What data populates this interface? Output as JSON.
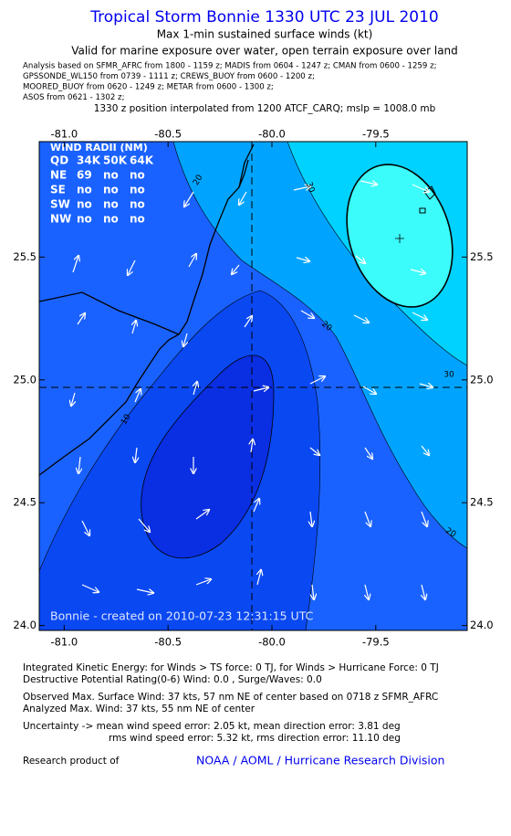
{
  "header": {
    "title": "Tropical Storm Bonnie 1330 UTC 23 JUL 2010",
    "subtitle": "Max 1-min sustained surface winds (kt)",
    "validity": "Valid for marine exposure over water, open terrain exposure over land",
    "analysis_sources": [
      "Analysis based on  SFMR_AFRC from 1800 - 1159 z;  MADIS from 0604 - 1247 z;  CMAN from 0600 - 1259 z;",
      "GPSSONDE_WL150 from 0739 - 1111 z;  CREWS_BUOY from 0600 - 1200 z;",
      "MOORED_BUOY from 0620 - 1249 z;  METAR from 0600 - 1300 z;",
      "ASOS from 0621 - 1302 z;"
    ],
    "position_note": "1330 z position interpolated from 1200 ATCF_CARQ; mslp = 1008.0 mb"
  },
  "map": {
    "xlim": [
      -81.12,
      -79.06
    ],
    "ylim": [
      23.98,
      25.97
    ],
    "xticks": [
      {
        "value": -81,
        "label": "-81.0"
      },
      {
        "value": -80.5,
        "label": "-80.5"
      },
      {
        "value": -80,
        "label": "-80.0"
      },
      {
        "value": -79.5,
        "label": "-79.5"
      }
    ],
    "yticks": [
      {
        "value": 24,
        "label": "24.0"
      },
      {
        "value": 24.5,
        "label": "24.5"
      },
      {
        "value": 25,
        "label": "25.0"
      },
      {
        "value": 25.5,
        "label": "25.5"
      }
    ],
    "wind_radii": {
      "title": "WIND RADII (NM)",
      "rows": [
        [
          "QD",
          "34K",
          "50K",
          "64K"
        ],
        [
          "NE",
          "69",
          "no",
          "no"
        ],
        [
          "SE",
          "no",
          "no",
          "no"
        ],
        [
          "SW",
          "no",
          "no",
          "no"
        ],
        [
          "NW",
          "no",
          "no",
          "no"
        ]
      ]
    },
    "contour_labels": [
      "20",
      "30",
      "20",
      "30",
      "10",
      "20"
    ],
    "credit": "Bonnie - created on 2010-07-23 12:31:15 UTC"
  },
  "footer": {
    "lines": [
      "Integrated Kinetic Energy:  for Winds > TS force: 0 TJ,  for Winds > Hurricane Force: 0 TJ",
      "Destructive Potential Rating(0-6)   Wind: 0.0 , Surge/Waves: 0.0",
      "Observed Max. Surface Wind: 37 kts, 57 nm NE of center based on 0718 z SFMR_AFRC",
      "Analyzed Max. Wind: 37 kts, 55 nm NE of center",
      "Uncertainty -> mean wind speed error: 2.05 kt,   mean direction error: 3.81 deg",
      "rms wind speed error: 5.32 kt,   rms direction error: 11.10 deg"
    ],
    "research_label": "Research product of",
    "organization": "NOAA / AOML / Hurricane Research Division"
  }
}
